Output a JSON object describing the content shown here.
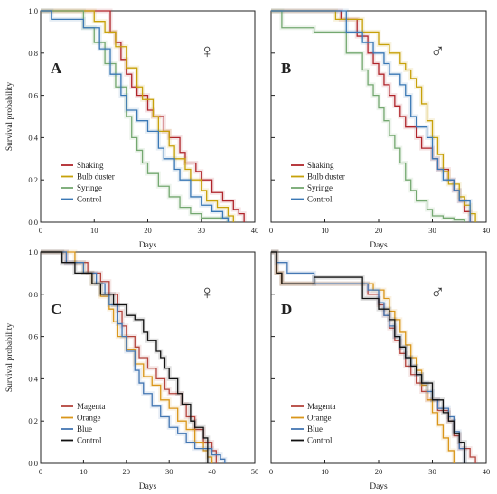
{
  "y_label": "Survival probability",
  "x_label": "Days",
  "chart_data": [
    {
      "type": "line",
      "step": true,
      "panel_label": "A",
      "sex_symbol": "♀",
      "xlim": [
        0,
        40
      ],
      "ylim": [
        0,
        1.0
      ],
      "xticks": [
        "0",
        "10",
        "20",
        "30",
        "40"
      ],
      "yticks": [
        "0.0",
        "0.2",
        "0.4",
        "0.6",
        "0.8",
        "1.0"
      ],
      "legend_position": "bottom-left",
      "series": [
        {
          "name": "Shaking",
          "color": "#b0252b",
          "x": [
            0,
            13,
            14,
            15,
            16,
            17,
            18,
            20,
            21,
            23,
            24,
            26,
            27,
            29,
            30,
            32,
            34,
            36,
            37,
            38
          ],
          "y": [
            1,
            0.9,
            0.85,
            0.77,
            0.7,
            0.64,
            0.6,
            0.53,
            0.5,
            0.43,
            0.4,
            0.33,
            0.28,
            0.24,
            0.2,
            0.14,
            0.1,
            0.06,
            0.04,
            0
          ]
        },
        {
          "name": "Bulb duster",
          "color": "#c7a10a",
          "x": [
            0,
            10,
            12,
            14,
            16,
            18,
            19,
            21,
            22,
            24,
            25,
            27,
            28,
            30,
            31,
            33,
            35,
            36
          ],
          "y": [
            1,
            0.95,
            0.9,
            0.83,
            0.73,
            0.64,
            0.58,
            0.5,
            0.43,
            0.36,
            0.3,
            0.25,
            0.2,
            0.15,
            0.1,
            0.07,
            0.03,
            0
          ]
        },
        {
          "name": "Syringe",
          "color": "#74a870",
          "x": [
            0,
            8,
            10,
            12,
            14,
            16,
            17,
            18,
            19,
            20,
            22,
            24,
            26,
            28,
            30,
            35
          ],
          "y": [
            1,
            0.92,
            0.85,
            0.75,
            0.64,
            0.5,
            0.4,
            0.34,
            0.28,
            0.23,
            0.17,
            0.12,
            0.07,
            0.04,
            0.02,
            0
          ]
        },
        {
          "name": "Control",
          "color": "#3a78b5",
          "x": [
            0,
            2,
            8,
            11,
            13,
            15,
            16,
            18,
            20,
            22,
            23,
            25,
            26,
            28,
            30,
            32,
            34,
            35
          ],
          "y": [
            1,
            0.96,
            0.92,
            0.82,
            0.7,
            0.6,
            0.53,
            0.48,
            0.43,
            0.35,
            0.3,
            0.25,
            0.2,
            0.12,
            0.08,
            0.05,
            0.02,
            0
          ]
        }
      ]
    },
    {
      "type": "line",
      "step": true,
      "panel_label": "B",
      "sex_symbol": "♂",
      "xlim": [
        0,
        40
      ],
      "ylim": [
        0,
        1.0
      ],
      "xticks": [
        "0",
        "10",
        "20",
        "30",
        "40"
      ],
      "yticks": [],
      "legend_position": "bottom-left",
      "series": [
        {
          "name": "Shaking",
          "color": "#b0252b",
          "x": [
            0,
            13,
            16,
            18,
            19,
            20,
            21,
            22,
            23,
            24,
            25,
            27,
            28,
            30,
            31,
            33,
            34,
            35,
            36,
            37
          ],
          "y": [
            1,
            0.96,
            0.88,
            0.8,
            0.75,
            0.7,
            0.65,
            0.6,
            0.55,
            0.5,
            0.45,
            0.4,
            0.35,
            0.3,
            0.25,
            0.2,
            0.15,
            0.1,
            0.05,
            0
          ]
        },
        {
          "name": "Bulb duster",
          "color": "#c7a10a",
          "x": [
            0,
            12,
            17,
            20,
            22,
            24,
            25,
            26,
            27,
            28,
            29,
            30,
            31,
            32,
            33,
            35,
            36,
            37,
            38
          ],
          "y": [
            1,
            0.96,
            0.9,
            0.84,
            0.8,
            0.75,
            0.72,
            0.68,
            0.64,
            0.56,
            0.48,
            0.4,
            0.32,
            0.24,
            0.18,
            0.12,
            0.08,
            0.04,
            0
          ]
        },
        {
          "name": "Syringe",
          "color": "#74a870",
          "x": [
            0,
            2,
            8,
            14,
            17,
            18,
            19,
            20,
            21,
            22,
            23,
            24,
            25,
            26,
            27,
            29,
            30,
            32,
            34,
            36
          ],
          "y": [
            1,
            0.92,
            0.9,
            0.8,
            0.72,
            0.65,
            0.6,
            0.54,
            0.48,
            0.41,
            0.35,
            0.28,
            0.2,
            0.15,
            0.1,
            0.06,
            0.03,
            0.02,
            0.01,
            0
          ]
        },
        {
          "name": "Control",
          "color": "#3a78b5",
          "x": [
            0,
            14,
            17,
            19,
            21,
            22,
            24,
            25,
            26,
            27,
            29,
            30,
            31,
            32,
            34,
            35,
            37
          ],
          "y": [
            1,
            0.9,
            0.85,
            0.8,
            0.75,
            0.7,
            0.65,
            0.6,
            0.5,
            0.45,
            0.4,
            0.3,
            0.25,
            0.2,
            0.15,
            0.1,
            0
          ]
        }
      ]
    },
    {
      "type": "line",
      "step": true,
      "panel_label": "C",
      "sex_symbol": "♀",
      "xlim": [
        0,
        50
      ],
      "ylim": [
        0,
        1.0
      ],
      "xticks": [
        "0",
        "10",
        "20",
        "30",
        "40",
        "50"
      ],
      "yticks": [
        "0.0",
        "0.2",
        "0.4",
        "0.6",
        "0.8",
        "1.0"
      ],
      "legend_position": "bottom-left",
      "series": [
        {
          "name": "Magenta",
          "color": "#b4443d",
          "x": [
            0,
            6,
            11,
            14,
            16,
            18,
            19,
            20,
            22,
            23,
            25,
            27,
            29,
            30,
            33,
            34,
            36,
            38,
            40,
            41
          ],
          "y": [
            1,
            0.95,
            0.9,
            0.86,
            0.8,
            0.72,
            0.65,
            0.6,
            0.55,
            0.5,
            0.45,
            0.4,
            0.35,
            0.33,
            0.28,
            0.22,
            0.16,
            0.1,
            0.06,
            0
          ]
        },
        {
          "name": "Orange",
          "color": "#d9961a",
          "x": [
            0,
            8,
            10,
            12,
            14,
            16,
            17,
            18,
            20,
            22,
            24,
            26,
            28,
            30,
            32,
            34,
            36,
            38,
            39,
            40
          ],
          "y": [
            1,
            0.95,
            0.9,
            0.85,
            0.79,
            0.73,
            0.67,
            0.6,
            0.54,
            0.47,
            0.41,
            0.37,
            0.3,
            0.26,
            0.2,
            0.16,
            0.1,
            0.06,
            0.03,
            0
          ]
        },
        {
          "name": "Blue",
          "color": "#4477b3",
          "x": [
            0,
            6,
            10,
            13,
            15,
            16,
            18,
            19,
            20,
            22,
            23,
            24,
            26,
            28,
            30,
            32,
            34,
            36,
            40,
            42,
            43
          ],
          "y": [
            1,
            0.95,
            0.9,
            0.85,
            0.8,
            0.75,
            0.66,
            0.6,
            0.53,
            0.44,
            0.38,
            0.33,
            0.27,
            0.22,
            0.17,
            0.14,
            0.1,
            0.07,
            0.04,
            0.02,
            0
          ]
        },
        {
          "name": "Control",
          "color": "#111111",
          "x": [
            0,
            5,
            8,
            12,
            14,
            17,
            18,
            20,
            22,
            24,
            25,
            27,
            28,
            29,
            30,
            32,
            33,
            35,
            36,
            38,
            39
          ],
          "y": [
            1,
            0.95,
            0.9,
            0.85,
            0.8,
            0.75,
            0.75,
            0.7,
            0.68,
            0.62,
            0.58,
            0.53,
            0.5,
            0.45,
            0.4,
            0.33,
            0.28,
            0.2,
            0.17,
            0.12,
            0
          ]
        }
      ]
    },
    {
      "type": "line",
      "step": true,
      "panel_label": "D",
      "sex_symbol": "♂",
      "xlim": [
        0,
        40
      ],
      "ylim": [
        0,
        1.0
      ],
      "xticks": [
        "0",
        "10",
        "20",
        "30",
        "40"
      ],
      "yticks": [],
      "legend_position": "bottom-left",
      "series": [
        {
          "name": "Magenta",
          "color": "#b4443d",
          "x": [
            0,
            1,
            2,
            15,
            18,
            20,
            21,
            22,
            23,
            24,
            25,
            26,
            27,
            28,
            29,
            31,
            33,
            34,
            35,
            37,
            38
          ],
          "y": [
            1,
            0.9,
            0.85,
            0.85,
            0.8,
            0.75,
            0.7,
            0.64,
            0.58,
            0.52,
            0.46,
            0.42,
            0.38,
            0.34,
            0.3,
            0.25,
            0.2,
            0.13,
            0.07,
            0.03,
            0
          ]
        },
        {
          "name": "Orange",
          "color": "#d9961a",
          "x": [
            0,
            1,
            2,
            14,
            19,
            21,
            22,
            23,
            24,
            25,
            26,
            27,
            28,
            29,
            30,
            31,
            32,
            33,
            34
          ],
          "y": [
            1,
            0.9,
            0.85,
            0.85,
            0.82,
            0.78,
            0.72,
            0.68,
            0.62,
            0.56,
            0.5,
            0.44,
            0.37,
            0.3,
            0.24,
            0.18,
            0.12,
            0.06,
            0
          ]
        },
        {
          "name": "Blue",
          "color": "#4477b3",
          "x": [
            0,
            1,
            3,
            8,
            18,
            20,
            21,
            22,
            23,
            24,
            25,
            26,
            27,
            28,
            29,
            30,
            31,
            33,
            34,
            35,
            36
          ],
          "y": [
            1,
            0.95,
            0.9,
            0.85,
            0.82,
            0.76,
            0.7,
            0.65,
            0.6,
            0.55,
            0.5,
            0.46,
            0.42,
            0.38,
            0.34,
            0.3,
            0.26,
            0.22,
            0.15,
            0.07,
            0
          ]
        },
        {
          "name": "Control",
          "color": "#111111",
          "x": [
            0,
            1,
            2,
            8,
            17,
            20,
            22,
            23,
            24,
            25,
            26,
            27,
            28,
            30,
            32,
            33,
            34,
            35,
            36
          ],
          "y": [
            1,
            0.9,
            0.85,
            0.88,
            0.78,
            0.73,
            0.68,
            0.6,
            0.55,
            0.5,
            0.46,
            0.42,
            0.38,
            0.3,
            0.24,
            0.2,
            0.14,
            0.1,
            0
          ]
        }
      ]
    }
  ]
}
